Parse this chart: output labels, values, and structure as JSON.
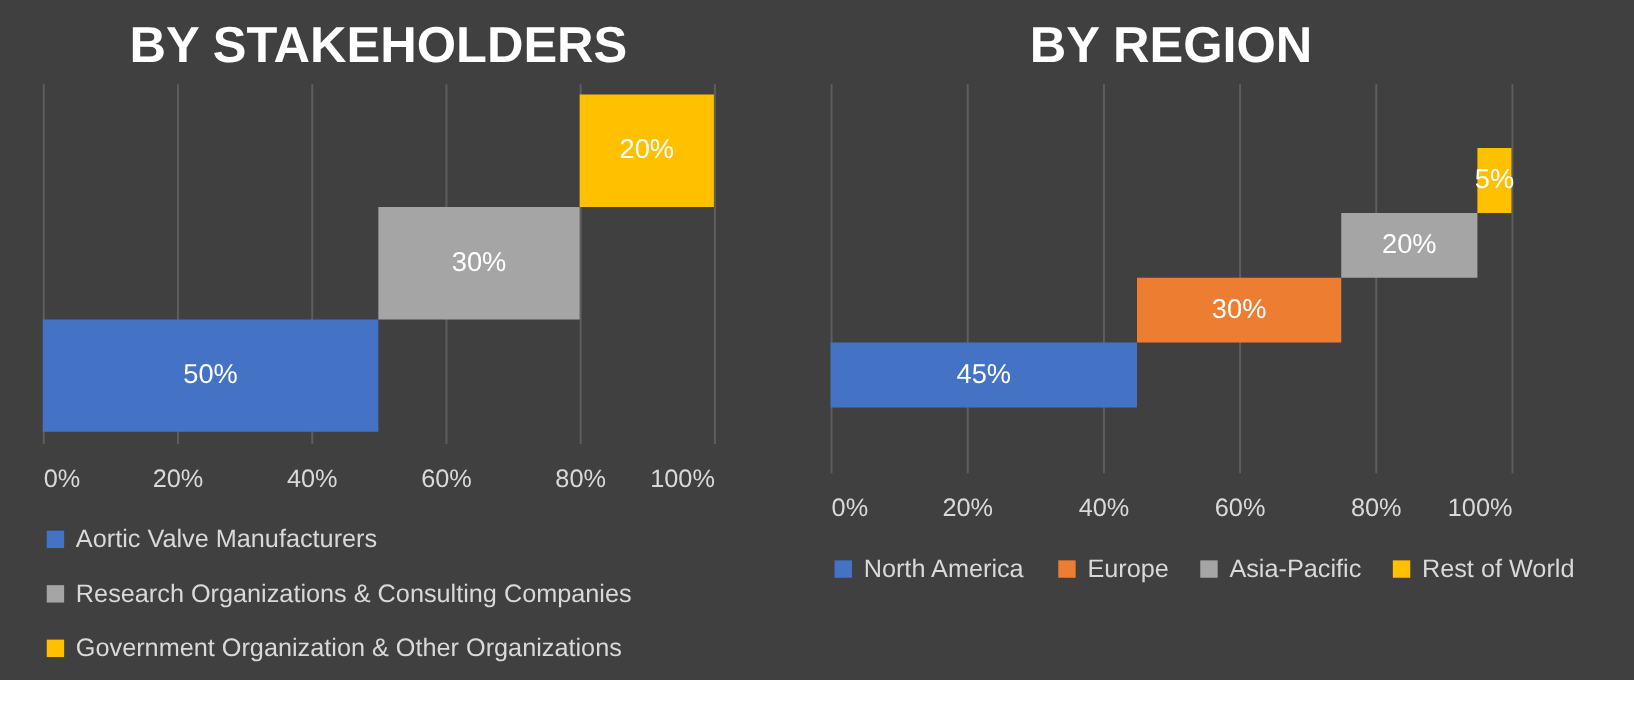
{
  "chart_data": [
    {
      "type": "bar",
      "title": "BY STAKEHOLDERS",
      "orientation": "horizontal",
      "categories": [
        null,
        null,
        null
      ],
      "series": [
        {
          "name": "Aortic Valve Manufacturers",
          "color": "#4472c4",
          "values": [
            null,
            null,
            50
          ],
          "base": [
            null,
            null,
            0
          ],
          "value_labels": [
            null,
            null,
            "50%"
          ]
        },
        {
          "name": "Research Organizations & Consulting Companies",
          "color": "#a5a5a5",
          "values": [
            null,
            30,
            null
          ],
          "base": [
            null,
            50,
            null
          ],
          "value_labels": [
            null,
            "30%",
            null
          ]
        },
        {
          "name": "Government Organization  & Other Organizations",
          "color": "#ffc000",
          "values": [
            20,
            null,
            null
          ],
          "base": [
            80,
            null,
            null
          ],
          "value_labels": [
            "20%",
            null,
            null
          ]
        }
      ],
      "xlim": [
        0,
        100
      ],
      "xticks": [
        {
          "value": 0,
          "label": "0%"
        },
        {
          "value": 20,
          "label": "20%"
        },
        {
          "value": 40,
          "label": "40%"
        },
        {
          "value": 60,
          "label": "60%"
        },
        {
          "value": 80,
          "label": "80%"
        },
        {
          "value": 100,
          "label": "100%"
        }
      ],
      "grid": "x",
      "legend": "bottom",
      "tick_labels": "x"
    },
    {
      "type": "bar",
      "title": "BY REGION",
      "orientation": "horizontal",
      "categories": [
        null,
        null,
        null,
        null
      ],
      "series": [
        {
          "name": "North America",
          "color": "#4472c4",
          "values": [
            null,
            null,
            null,
            45
          ],
          "base": [
            null,
            null,
            null,
            0
          ],
          "value_labels": [
            null,
            null,
            null,
            "45%"
          ]
        },
        {
          "name": "Europe",
          "color": "#ed7d31",
          "values": [
            null,
            null,
            30,
            null
          ],
          "base": [
            null,
            null,
            45,
            null
          ],
          "value_labels": [
            null,
            null,
            "30%",
            null
          ]
        },
        {
          "name": "Asia-Pacific",
          "color": "#a5a5a5",
          "values": [
            null,
            20,
            null,
            null
          ],
          "base": [
            null,
            75,
            null,
            null
          ],
          "value_labels": [
            null,
            "20%",
            null,
            null
          ]
        },
        {
          "name": "Rest of World",
          "color": "#ffc000",
          "values": [
            5,
            null,
            null,
            null
          ],
          "base": [
            95,
            null,
            null,
            null
          ],
          "value_labels": [
            "5%",
            null,
            null,
            null
          ]
        }
      ],
      "xlim": [
        0,
        100
      ],
      "xticks": [
        {
          "value": 0,
          "label": "0%"
        },
        {
          "value": 20,
          "label": "20%"
        },
        {
          "value": 40,
          "label": "40%"
        },
        {
          "value": 60,
          "label": "60%"
        },
        {
          "value": 80,
          "label": "80%"
        },
        {
          "value": 100,
          "label": "100%"
        }
      ],
      "grid": "x",
      "legend": "bottom",
      "tick_labels": "x"
    }
  ]
}
